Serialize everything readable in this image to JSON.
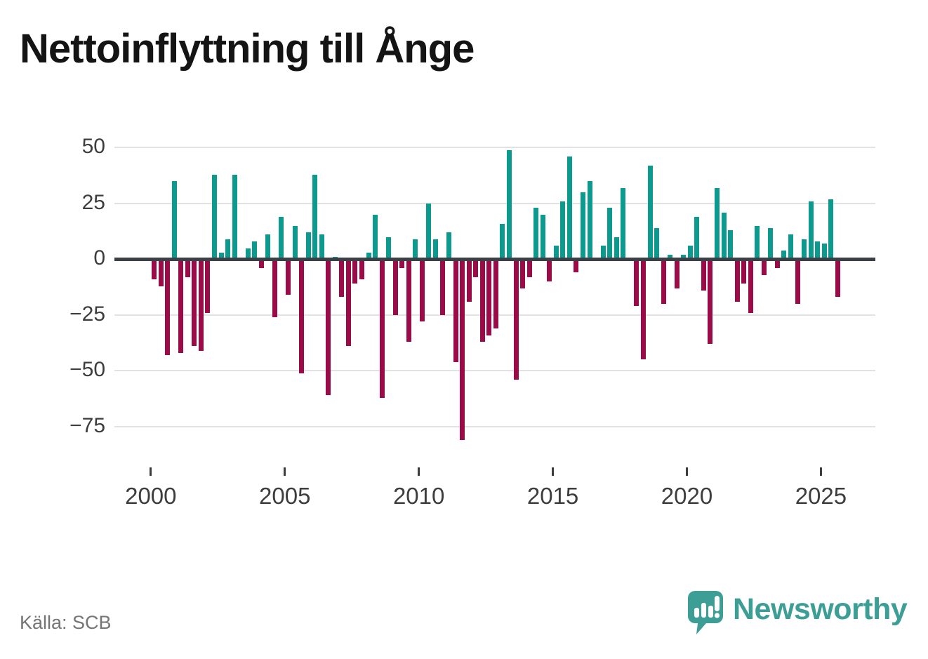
{
  "title": "Nettoinflyttning till Ånge",
  "source_note": "Källa: SCB",
  "branding": {
    "wordmark": "Newsworthy",
    "logo_icon": "newsworthy-speech-bubble-chart-icon",
    "brand_color": "#3d9e96"
  },
  "chart_data": {
    "type": "bar",
    "title": "Nettoinflyttning till Ånge",
    "xlabel": "",
    "ylabel": "",
    "frequency": "quarterly",
    "start_period": "2000-Q1",
    "end_period": "2025-Q3",
    "grid": true,
    "legend": false,
    "ylim": [
      -85,
      55
    ],
    "y_tick_values": [
      50,
      25,
      0,
      -25,
      -50,
      -75
    ],
    "y_tick_labels": [
      "50",
      "25",
      "0",
      "−25",
      "−50",
      "−75"
    ],
    "x_tick_years": [
      2000,
      2005,
      2010,
      2015,
      2020,
      2025
    ],
    "x_tick_labels": [
      "2000",
      "2005",
      "2010",
      "2015",
      "2020",
      "2025"
    ],
    "positive_color": "#0d9a8e",
    "negative_color": "#9b0b48",
    "series": [
      {
        "name": "Nettoinflyttning",
        "values": [
          -9,
          -12,
          -43,
          35,
          -42,
          -8,
          -39,
          -41,
          -24,
          38,
          3,
          9,
          38,
          0,
          5,
          8,
          -4,
          11,
          -26,
          19,
          -16,
          15,
          -51,
          12,
          38,
          11,
          -61,
          1,
          -17,
          -39,
          -11,
          -9,
          3,
          20,
          -62,
          10,
          -25,
          -4,
          -37,
          9,
          -28,
          25,
          9,
          -25,
          12,
          -46,
          -81,
          -19,
          -8,
          -37,
          -34,
          -31,
          16,
          49,
          -54,
          -13,
          -8,
          23,
          20,
          -10,
          6,
          26,
          46,
          -6,
          30,
          35,
          0,
          6,
          23,
          10,
          32,
          0,
          -21,
          -45,
          42,
          14,
          -20,
          2,
          -13,
          2,
          6,
          19,
          -14,
          -38,
          32,
          21,
          13,
          -19,
          -11,
          -24,
          15,
          -7,
          14,
          -4,
          4,
          11,
          -20,
          9,
          26,
          8,
          7,
          27,
          -17
        ]
      }
    ]
  }
}
